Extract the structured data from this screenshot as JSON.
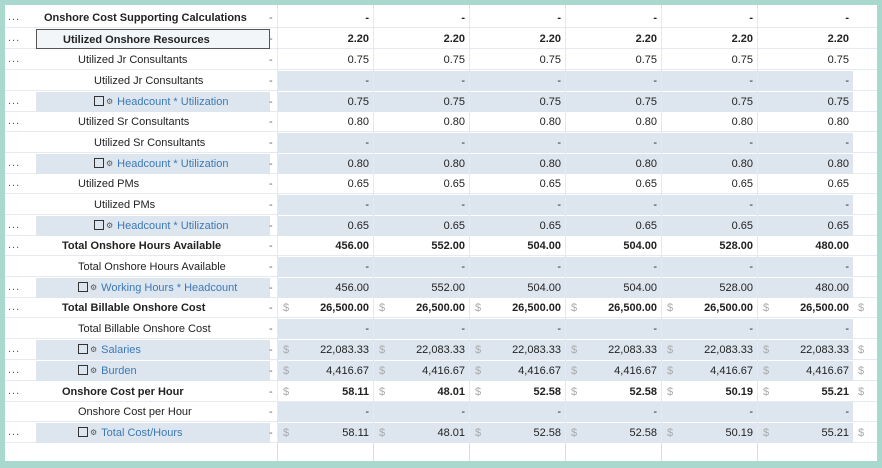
{
  "rows": [
    {
      "label": "Onshore Cost Supporting Calculations",
      "indent": 8,
      "bold": true,
      "dots": true,
      "values": [
        "-",
        "-",
        "-",
        "-",
        "-",
        "-"
      ]
    },
    {
      "label": "Utilized Onshore Resources",
      "indent": 26,
      "bold": true,
      "dots": true,
      "selected": true,
      "values": [
        "2.20",
        "2.20",
        "2.20",
        "2.20",
        "2.20",
        "2.20"
      ]
    },
    {
      "label": "Utilized Jr Consultants",
      "indent": 42,
      "dots": true,
      "values": [
        "0.75",
        "0.75",
        "0.75",
        "0.75",
        "0.75",
        "0.75"
      ]
    },
    {
      "label": "Utilized Jr Consultants",
      "indent": 58,
      "shadeValues": true,
      "values": [
        "-",
        "-",
        "-",
        "-",
        "-",
        "-"
      ]
    },
    {
      "label": "Headcount * Utilization",
      "indent": 58,
      "link": true,
      "checkbox": true,
      "dots": true,
      "shade": true,
      "values": [
        "0.75",
        "0.75",
        "0.75",
        "0.75",
        "0.75",
        "0.75"
      ]
    },
    {
      "label": "Utilized Sr Consultants",
      "indent": 42,
      "dots": true,
      "values": [
        "0.80",
        "0.80",
        "0.80",
        "0.80",
        "0.80",
        "0.80"
      ]
    },
    {
      "label": "Utilized Sr Consultants",
      "indent": 58,
      "shadeValues": true,
      "values": [
        "-",
        "-",
        "-",
        "-",
        "-",
        "-"
      ]
    },
    {
      "label": "Headcount * Utilization",
      "indent": 58,
      "link": true,
      "checkbox": true,
      "dots": true,
      "shade": true,
      "values": [
        "0.80",
        "0.80",
        "0.80",
        "0.80",
        "0.80",
        "0.80"
      ]
    },
    {
      "label": "Utilized PMs",
      "indent": 42,
      "dots": true,
      "values": [
        "0.65",
        "0.65",
        "0.65",
        "0.65",
        "0.65",
        "0.65"
      ]
    },
    {
      "label": "Utilized PMs",
      "indent": 58,
      "shadeValues": true,
      "values": [
        "-",
        "-",
        "-",
        "-",
        "-",
        "-"
      ]
    },
    {
      "label": "Headcount * Utilization",
      "indent": 58,
      "link": true,
      "checkbox": true,
      "dots": true,
      "shade": true,
      "values": [
        "0.65",
        "0.65",
        "0.65",
        "0.65",
        "0.65",
        "0.65"
      ]
    },
    {
      "label": "Total Onshore Hours Available",
      "indent": 26,
      "bold": true,
      "dots": true,
      "values": [
        "456.00",
        "552.00",
        "504.00",
        "504.00",
        "528.00",
        "480.00"
      ]
    },
    {
      "label": "Total Onshore Hours Available",
      "indent": 42,
      "shadeValues": true,
      "values": [
        "-",
        "-",
        "-",
        "-",
        "-",
        "-"
      ]
    },
    {
      "label": "Working Hours * Headcount",
      "indent": 42,
      "link": true,
      "checkbox": true,
      "dots": true,
      "shade": true,
      "values": [
        "456.00",
        "552.00",
        "504.00",
        "504.00",
        "528.00",
        "480.00"
      ]
    },
    {
      "label": "Total Billable Onshore Cost",
      "indent": 26,
      "bold": true,
      "dots": true,
      "currency": true,
      "values": [
        "26,500.00",
        "26,500.00",
        "26,500.00",
        "26,500.00",
        "26,500.00",
        "26,500.00"
      ]
    },
    {
      "label": "Total Billable Onshore Cost",
      "indent": 42,
      "shadeValues": true,
      "values": [
        "-",
        "-",
        "-",
        "-",
        "-",
        "-"
      ]
    },
    {
      "label": "Salaries",
      "indent": 42,
      "link": true,
      "checkbox": true,
      "dots": true,
      "shade": true,
      "currency": true,
      "values": [
        "22,083.33",
        "22,083.33",
        "22,083.33",
        "22,083.33",
        "22,083.33",
        "22,083.33"
      ]
    },
    {
      "label": "Burden",
      "indent": 42,
      "link": true,
      "checkbox": true,
      "dots": true,
      "shade": true,
      "currency": true,
      "values": [
        "4,416.67",
        "4,416.67",
        "4,416.67",
        "4,416.67",
        "4,416.67",
        "4,416.67"
      ]
    },
    {
      "label": "Onshore Cost per Hour",
      "indent": 26,
      "bold": true,
      "dots": true,
      "currency": true,
      "values": [
        "58.11",
        "48.01",
        "52.58",
        "52.58",
        "50.19",
        "55.21"
      ]
    },
    {
      "label": "Onshore Cost per Hour",
      "indent": 42,
      "shadeValues": true,
      "values": [
        "-",
        "-",
        "-",
        "-",
        "-",
        "-"
      ]
    },
    {
      "label": "Total Cost/Hours",
      "indent": 42,
      "link": true,
      "checkbox": true,
      "dots": true,
      "shade": true,
      "currency": true,
      "values": [
        "58.11",
        "48.01",
        "52.58",
        "52.58",
        "50.19",
        "55.21"
      ]
    }
  ],
  "currency_symbol": "$",
  "dots_label": "...",
  "sep_label": "-"
}
